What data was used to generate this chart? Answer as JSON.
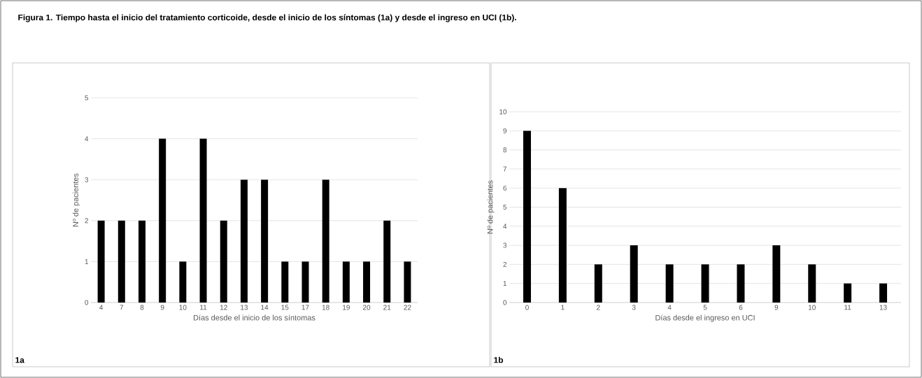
{
  "chart_data": [
    {
      "type": "bar",
      "title": "Figura 1. Tiempo hasta el inicio del tratamiento corticoide, desde el inicio de los síntomas (1a) y desde el ingreso en UCI (1b).",
      "xlabel": "Días desde el inicio de los síntomas",
      "ylabel": "Nº de pacientes",
      "annotations": [
        "1a"
      ],
      "categories": [
        "4",
        "7",
        "8",
        "9",
        "10",
        "11",
        "12",
        "13",
        "14",
        "15",
        "17",
        "18",
        "19",
        "20",
        "21",
        "22"
      ],
      "values": [
        2,
        2,
        2,
        4,
        1,
        4,
        2,
        3,
        3,
        1,
        1,
        3,
        1,
        1,
        2,
        1
      ],
      "color": "#000000",
      "ylim": [
        0,
        5
      ],
      "yticks": [
        0,
        1,
        2,
        3,
        4,
        5
      ],
      "grid": "y"
    },
    {
      "type": "bar",
      "xlabel": "Días desde el ingreso en UCI",
      "ylabel": "Nº de pacientes",
      "annotations": [
        "1b"
      ],
      "categories": [
        "0",
        "1",
        "2",
        "3",
        "4",
        "5",
        "6",
        "9",
        "10",
        "11",
        "13"
      ],
      "values": [
        9,
        6,
        2,
        3,
        2,
        2,
        2,
        3,
        2,
        1,
        1
      ],
      "color": "#000000",
      "ylim": [
        0,
        10
      ],
      "yticks": [
        0,
        1,
        2,
        3,
        4,
        5,
        6,
        7,
        8,
        9,
        10
      ],
      "grid": "y"
    }
  ]
}
